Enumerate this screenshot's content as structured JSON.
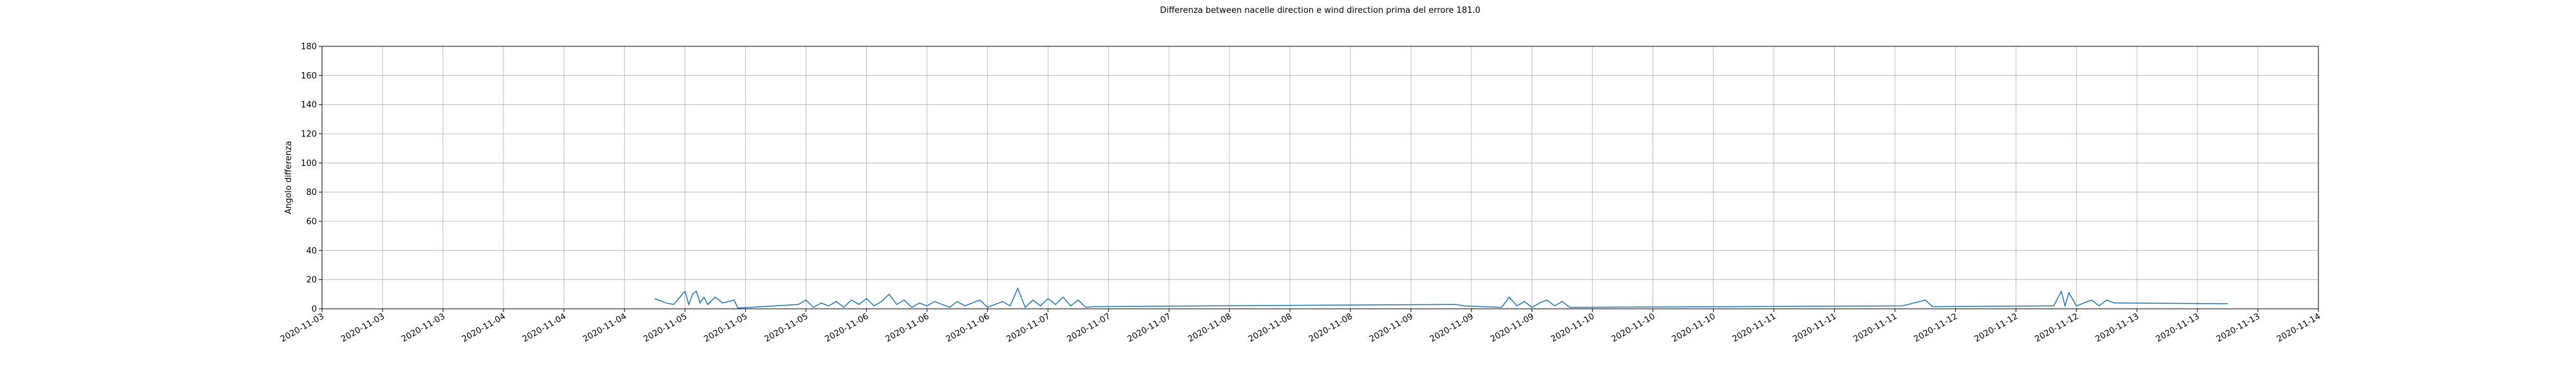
{
  "chart_data": {
    "type": "line",
    "title": "Differenza between nacelle direction e wind direction prima del errore 181.0",
    "y_label": "Angolo differenza",
    "grid": true,
    "xlim": [
      "2020-11-03 00:00",
      "2020-11-14 00:00"
    ],
    "ylim": [
      0,
      180
    ],
    "yticks": [
      0,
      20,
      40,
      60,
      80,
      100,
      120,
      140,
      160,
      180
    ],
    "xticks": [
      {
        "value": "2020-11-03 00:00",
        "label": "2020-11-03"
      },
      {
        "value": "2020-11-03 08:00",
        "label": "2020-11-03"
      },
      {
        "value": "2020-11-03 16:00",
        "label": "2020-11-03"
      },
      {
        "value": "2020-11-04 00:00",
        "label": "2020-11-04"
      },
      {
        "value": "2020-11-04 08:00",
        "label": "2020-11-04"
      },
      {
        "value": "2020-11-04 16:00",
        "label": "2020-11-04"
      },
      {
        "value": "2020-11-05 00:00",
        "label": "2020-11-05"
      },
      {
        "value": "2020-11-05 08:00",
        "label": "2020-11-05"
      },
      {
        "value": "2020-11-05 16:00",
        "label": "2020-11-05"
      },
      {
        "value": "2020-11-06 00:00",
        "label": "2020-11-06"
      },
      {
        "value": "2020-11-06 08:00",
        "label": "2020-11-06"
      },
      {
        "value": "2020-11-06 16:00",
        "label": "2020-11-06"
      },
      {
        "value": "2020-11-07 00:00",
        "label": "2020-11-07"
      },
      {
        "value": "2020-11-07 08:00",
        "label": "2020-11-07"
      },
      {
        "value": "2020-11-07 16:00",
        "label": "2020-11-07"
      },
      {
        "value": "2020-11-08 00:00",
        "label": "2020-11-08"
      },
      {
        "value": "2020-11-08 08:00",
        "label": "2020-11-08"
      },
      {
        "value": "2020-11-08 16:00",
        "label": "2020-11-08"
      },
      {
        "value": "2020-11-09 00:00",
        "label": "2020-11-09"
      },
      {
        "value": "2020-11-09 08:00",
        "label": "2020-11-09"
      },
      {
        "value": "2020-11-09 16:00",
        "label": "2020-11-09"
      },
      {
        "value": "2020-11-10 00:00",
        "label": "2020-11-10"
      },
      {
        "value": "2020-11-10 08:00",
        "label": "2020-11-10"
      },
      {
        "value": "2020-11-10 16:00",
        "label": "2020-11-10"
      },
      {
        "value": "2020-11-11 00:00",
        "label": "2020-11-11"
      },
      {
        "value": "2020-11-11 08:00",
        "label": "2020-11-11"
      },
      {
        "value": "2020-11-11 16:00",
        "label": "2020-11-11"
      },
      {
        "value": "2020-11-12 00:00",
        "label": "2020-11-12"
      },
      {
        "value": "2020-11-12 08:00",
        "label": "2020-11-12"
      },
      {
        "value": "2020-11-12 16:00",
        "label": "2020-11-12"
      },
      {
        "value": "2020-11-13 00:00",
        "label": "2020-11-13"
      },
      {
        "value": "2020-11-13 08:00",
        "label": "2020-11-13"
      },
      {
        "value": "2020-11-13 16:00",
        "label": "2020-11-13"
      },
      {
        "value": "2020-11-14 00:00",
        "label": "2020-11-14"
      }
    ],
    "x": [
      "2020-11-04 20:00",
      "2020-11-04 21:30",
      "2020-11-04 22:30",
      "2020-11-05 00:00",
      "2020-11-05 00:30",
      "2020-11-05 01:00",
      "2020-11-05 01:30",
      "2020-11-05 02:00",
      "2020-11-05 02:30",
      "2020-11-05 03:00",
      "2020-11-05 04:00",
      "2020-11-05 05:00",
      "2020-11-05 06:30",
      "2020-11-05 07:00",
      "2020-11-05 15:00",
      "2020-11-05 16:00",
      "2020-11-05 17:00",
      "2020-11-05 18:00",
      "2020-11-05 19:00",
      "2020-11-05 20:00",
      "2020-11-05 21:00",
      "2020-11-05 22:00",
      "2020-11-05 23:00",
      "2020-11-06 00:00",
      "2020-11-06 01:00",
      "2020-11-06 02:00",
      "2020-11-06 03:00",
      "2020-11-06 04:00",
      "2020-11-06 05:00",
      "2020-11-06 06:00",
      "2020-11-06 07:00",
      "2020-11-06 08:00",
      "2020-11-06 09:00",
      "2020-11-06 10:00",
      "2020-11-06 11:00",
      "2020-11-06 12:00",
      "2020-11-06 13:00",
      "2020-11-06 14:00",
      "2020-11-06 15:00",
      "2020-11-06 16:00",
      "2020-11-06 17:00",
      "2020-11-06 18:00",
      "2020-11-06 19:00",
      "2020-11-06 20:00",
      "2020-11-06 21:00",
      "2020-11-06 22:00",
      "2020-11-06 23:00",
      "2020-11-07 00:00",
      "2020-11-07 01:00",
      "2020-11-07 02:00",
      "2020-11-07 03:00",
      "2020-11-07 04:00",
      "2020-11-07 05:00",
      "2020-11-07 06:00",
      "2020-11-08 12:00",
      "2020-11-09 06:00",
      "2020-11-09 07:00",
      "2020-11-09 12:00",
      "2020-11-09 13:00",
      "2020-11-09 14:00",
      "2020-11-09 15:00",
      "2020-11-09 16:00",
      "2020-11-09 17:00",
      "2020-11-09 18:00",
      "2020-11-09 19:00",
      "2020-11-09 20:00",
      "2020-11-09 21:00",
      "2020-11-11 17:00",
      "2020-11-11 20:00",
      "2020-11-11 21:00",
      "2020-11-12 13:00",
      "2020-11-12 14:00",
      "2020-11-12 14:30",
      "2020-11-12 15:00",
      "2020-11-12 16:00",
      "2020-11-12 18:00",
      "2020-11-12 19:00",
      "2020-11-12 20:00",
      "2020-11-12 21:00",
      "2020-11-13 12:00"
    ],
    "series": [
      {
        "color": "#1f77b4",
        "values": [
          7,
          4,
          3,
          12,
          3,
          10,
          12,
          4,
          8,
          3,
          8,
          4,
          6,
          0.5,
          3,
          6,
          1,
          4,
          2,
          5,
          1,
          6,
          3,
          7,
          2,
          5,
          10,
          3,
          6,
          1,
          4,
          2,
          5,
          3,
          1,
          5,
          2,
          4,
          6,
          1,
          3,
          5,
          2,
          14,
          1,
          6,
          2,
          7,
          3,
          8,
          2,
          6,
          1,
          1.5,
          2.5,
          3,
          2,
          1,
          8,
          2,
          5,
          1,
          4,
          6,
          2,
          5,
          1,
          2,
          6,
          1.5,
          2,
          12,
          2,
          11,
          2,
          6,
          2,
          6,
          4,
          3.5
        ]
      }
    ]
  }
}
